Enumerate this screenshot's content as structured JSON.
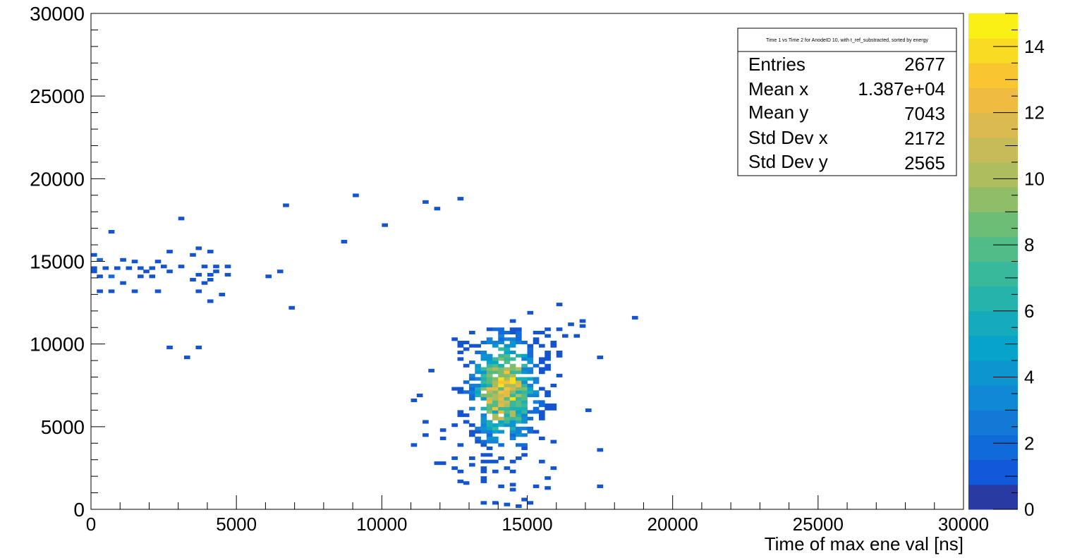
{
  "chart_data": {
    "type": "heatmap",
    "title": "Time 1 vs Time 2 for AnodeID 10, with t_ref_substracted, sorted by energy",
    "xlabel": "Time of max ene val [ns]",
    "ylabel": "",
    "xlim": [
      0,
      30000
    ],
    "ylim": [
      0,
      30000
    ],
    "x_ticks": [
      "0",
      "5000",
      "10000",
      "15000",
      "20000",
      "25000",
      "30000"
    ],
    "y_ticks": [
      "0",
      "5000",
      "10000",
      "15000",
      "20000",
      "25000",
      "30000"
    ],
    "z_range": [
      0,
      15
    ],
    "z_ticks": [
      "0",
      "2",
      "4",
      "6",
      "8",
      "10",
      "12",
      "14"
    ],
    "bin_width": 200,
    "stats": {
      "title": "Time 1 vs Time 2 for AnodeID 10, with t_ref_substracted, sorted by energy",
      "rows": [
        {
          "label": "Entries",
          "value": "2677"
        },
        {
          "label": "Mean x",
          "value": "1.387e+04"
        },
        {
          "label": "Mean y",
          "value": "7043"
        },
        {
          "label": "Std Dev x",
          "value": "2172"
        },
        {
          "label": "Std Dev y",
          "value": "2565"
        }
      ]
    },
    "outlier_bins": [
      [
        9000,
        18900,
        1
      ],
      [
        6600,
        18300,
        1
      ],
      [
        11400,
        18500,
        1
      ],
      [
        11800,
        18100,
        1
      ],
      [
        12600,
        18700,
        1
      ],
      [
        3000,
        17500,
        1
      ],
      [
        10000,
        17100,
        1
      ],
      [
        600,
        16700,
        1
      ],
      [
        8600,
        16100,
        1
      ],
      [
        2600,
        15500,
        1
      ],
      [
        3600,
        15700,
        1
      ],
      [
        4000,
        15500,
        1
      ],
      [
        3400,
        15300,
        1
      ],
      [
        0,
        15300,
        1
      ],
      [
        200,
        15000,
        2
      ],
      [
        1000,
        15000,
        1
      ],
      [
        1400,
        14900,
        1
      ],
      [
        2200,
        14900,
        1
      ],
      [
        0,
        14500,
        1
      ],
      [
        400,
        14500,
        1
      ],
      [
        800,
        14500,
        1
      ],
      [
        1200,
        14500,
        1
      ],
      [
        1600,
        14500,
        1
      ],
      [
        2000,
        14500,
        1
      ],
      [
        2400,
        14600,
        1
      ],
      [
        3000,
        14600,
        1
      ],
      [
        3800,
        14600,
        1
      ],
      [
        4200,
        14600,
        1
      ],
      [
        4600,
        14600,
        1
      ],
      [
        0,
        14300,
        1
      ],
      [
        1800,
        14300,
        1
      ],
      [
        2600,
        14300,
        1
      ],
      [
        4200,
        14300,
        1
      ],
      [
        6400,
        14300,
        1
      ],
      [
        200,
        14000,
        1
      ],
      [
        600,
        14000,
        2
      ],
      [
        1600,
        14000,
        1
      ],
      [
        2000,
        14000,
        1
      ],
      [
        3600,
        14100,
        1
      ],
      [
        4000,
        14100,
        1
      ],
      [
        4600,
        14100,
        1
      ],
      [
        6000,
        14000,
        1
      ],
      [
        3400,
        13800,
        1
      ],
      [
        4000,
        13800,
        1
      ],
      [
        1000,
        13600,
        1
      ],
      [
        3800,
        13600,
        1
      ],
      [
        200,
        13100,
        1
      ],
      [
        600,
        13100,
        1
      ],
      [
        1400,
        13100,
        1
      ],
      [
        2200,
        13100,
        1
      ],
      [
        3600,
        13100,
        1
      ],
      [
        4400,
        12900,
        1
      ],
      [
        4000,
        12500,
        1
      ],
      [
        6800,
        12100,
        1
      ],
      [
        16000,
        12300,
        1
      ],
      [
        15000,
        11800,
        1
      ],
      [
        18600,
        11500,
        1
      ],
      [
        16800,
        11300,
        1
      ],
      [
        14400,
        11300,
        1
      ],
      [
        16400,
        11100,
        1
      ],
      [
        16800,
        11000,
        1
      ],
      [
        16000,
        10800,
        1
      ],
      [
        16200,
        10400,
        1
      ],
      [
        16600,
        10400,
        1
      ],
      [
        15800,
        10000,
        1
      ],
      [
        2600,
        9700,
        1
      ],
      [
        3600,
        9700,
        1
      ],
      [
        3200,
        9100,
        1
      ],
      [
        17400,
        9100,
        1
      ],
      [
        11600,
        8300,
        1
      ],
      [
        11200,
        6800,
        1
      ],
      [
        11000,
        6500,
        1
      ],
      [
        17000,
        5900,
        1
      ],
      [
        11400,
        5200,
        1
      ],
      [
        11400,
        4400,
        1
      ],
      [
        11000,
        3800,
        1
      ],
      [
        12000,
        4700,
        1
      ],
      [
        12000,
        4200,
        1
      ],
      [
        11800,
        2700,
        1
      ],
      [
        12000,
        2700,
        1
      ],
      [
        17400,
        3500,
        1
      ],
      [
        17400,
        1300,
        1
      ],
      [
        12600,
        1600,
        1
      ],
      [
        12800,
        1500,
        1
      ],
      [
        13400,
        1600,
        1
      ],
      [
        14000,
        1300,
        1
      ],
      [
        14400,
        1100,
        1
      ],
      [
        15200,
        1300,
        1
      ],
      [
        13400,
        300,
        1
      ],
      [
        13800,
        300,
        1
      ],
      [
        14200,
        200,
        1
      ],
      [
        14600,
        100,
        1
      ],
      [
        15000,
        300,
        1
      ],
      [
        14800,
        500,
        1
      ]
    ],
    "cluster": {
      "bins_x": [
        12200,
        16000
      ],
      "bins_y": [
        800,
        10800
      ],
      "center": [
        14100,
        7100
      ],
      "peak": 14
    }
  }
}
